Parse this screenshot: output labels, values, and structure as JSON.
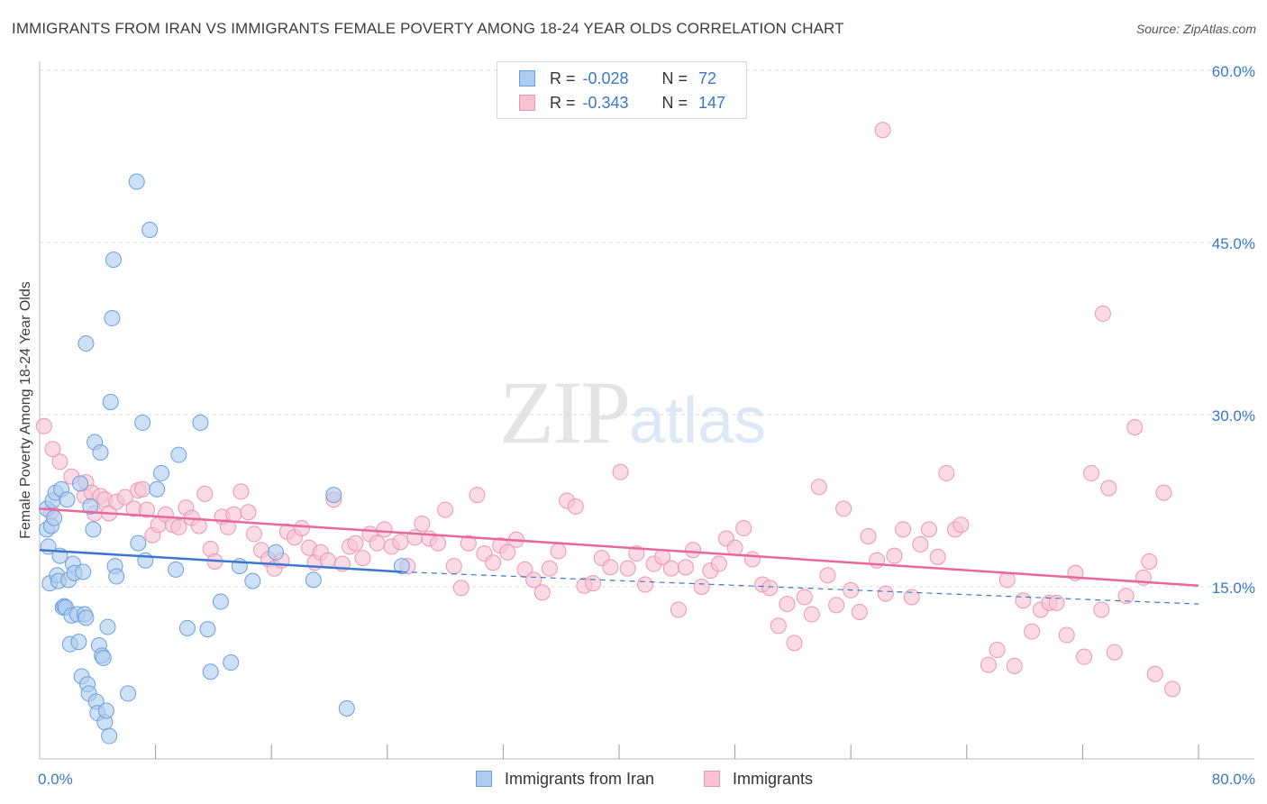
{
  "title": "IMMIGRANTS FROM IRAN VS IMMIGRANTS FEMALE POVERTY AMONG 18-24 YEAR OLDS CORRELATION CHART",
  "source": "Source: ZipAtlas.com",
  "watermark": {
    "zip": "ZIP",
    "atlas": "atlas"
  },
  "legend": {
    "r_label": "R =",
    "n_label": "N =",
    "rows": [
      {
        "r": "-0.028",
        "n": "72"
      },
      {
        "r": "-0.343",
        "n": "147"
      }
    ]
  },
  "colors": {
    "series1_fill": "#aecbf0",
    "series1_stroke": "#6a9fdc",
    "series1_line": "#3b77d0",
    "series2_fill": "#f7c3d3",
    "series2_stroke": "#ee94b3",
    "series2_line": "#e8689a",
    "axis_label": "#3a77c9",
    "grid": "#dcdcdc"
  },
  "chart_data": {
    "type": "scatter",
    "title": "IMMIGRANTS FROM IRAN VS IMMIGRANTS FEMALE POVERTY AMONG 18-24 YEAR OLDS CORRELATION CHART",
    "xlabel": "",
    "ylabel": "Female Poverty Among 18-24 Year Olds",
    "xlim": [
      0,
      80
    ],
    "ylim": [
      0,
      60
    ],
    "x_tick_labels": [
      "0.0%",
      "80.0%"
    ],
    "y_tick_values": [
      15,
      30,
      45,
      60
    ],
    "y_tick_labels": [
      "15.0%",
      "30.0%",
      "45.0%",
      "60.0%"
    ],
    "grid": "horizontal dashed",
    "legend_position": "top-center",
    "series": [
      {
        "name": "Immigrants from Iran",
        "r": -0.028,
        "n": 72,
        "trend": {
          "x0": 0,
          "y0": 18.2,
          "x1": 25,
          "y1": 16.3,
          "dashed_to_x": 80,
          "dashed_to_y": 13.5
        },
        "points": [
          [
            0.5,
            21.8
          ],
          [
            0.5,
            20.0
          ],
          [
            0.6,
            18.5
          ],
          [
            0.7,
            15.3
          ],
          [
            0.8,
            20.3
          ],
          [
            0.9,
            22.5
          ],
          [
            1.0,
            21.0
          ],
          [
            1.1,
            23.2
          ],
          [
            1.2,
            16.0
          ],
          [
            1.3,
            15.5
          ],
          [
            1.4,
            17.7
          ],
          [
            1.5,
            23.5
          ],
          [
            1.6,
            13.2
          ],
          [
            1.7,
            13.3
          ],
          [
            1.8,
            13.2
          ],
          [
            1.9,
            22.6
          ],
          [
            2.0,
            15.6
          ],
          [
            2.1,
            10.0
          ],
          [
            2.2,
            12.5
          ],
          [
            2.3,
            17.0
          ],
          [
            2.4,
            16.2
          ],
          [
            2.6,
            12.6
          ],
          [
            2.7,
            10.2
          ],
          [
            2.8,
            24.0
          ],
          [
            2.9,
            7.2
          ],
          [
            3.0,
            16.3
          ],
          [
            3.1,
            12.6
          ],
          [
            3.2,
            12.3
          ],
          [
            3.3,
            6.5
          ],
          [
            3.4,
            5.7
          ],
          [
            3.2,
            36.2
          ],
          [
            3.5,
            22.0
          ],
          [
            3.7,
            20.0
          ],
          [
            3.8,
            27.6
          ],
          [
            3.9,
            5.0
          ],
          [
            4.0,
            4.0
          ],
          [
            4.1,
            9.9
          ],
          [
            4.2,
            26.7
          ],
          [
            4.3,
            9.0
          ],
          [
            4.4,
            8.8
          ],
          [
            4.5,
            3.2
          ],
          [
            4.6,
            4.2
          ],
          [
            4.7,
            11.5
          ],
          [
            4.8,
            2.0
          ],
          [
            4.9,
            31.1
          ],
          [
            5.0,
            38.4
          ],
          [
            5.1,
            43.5
          ],
          [
            5.2,
            16.8
          ],
          [
            5.3,
            15.9
          ],
          [
            6.1,
            5.7
          ],
          [
            6.7,
            50.3
          ],
          [
            6.8,
            18.8
          ],
          [
            7.1,
            29.3
          ],
          [
            7.3,
            17.3
          ],
          [
            7.6,
            46.1
          ],
          [
            8.1,
            23.5
          ],
          [
            8.4,
            24.9
          ],
          [
            9.4,
            16.5
          ],
          [
            9.6,
            26.5
          ],
          [
            10.2,
            11.4
          ],
          [
            11.1,
            29.3
          ],
          [
            11.6,
            11.3
          ],
          [
            11.8,
            7.6
          ],
          [
            12.5,
            13.7
          ],
          [
            13.2,
            8.4
          ],
          [
            13.8,
            16.8
          ],
          [
            14.7,
            15.5
          ],
          [
            16.3,
            18.0
          ],
          [
            18.9,
            15.6
          ],
          [
            20.3,
            23.0
          ],
          [
            21.2,
            4.4
          ],
          [
            25.0,
            16.8
          ]
        ]
      },
      {
        "name": "Immigrants",
        "r": -0.343,
        "n": 147,
        "trend": {
          "x0": 0,
          "y0": 21.8,
          "x1": 80,
          "y1": 15.1
        },
        "points": [
          [
            0.3,
            29.0
          ],
          [
            0.8,
            21.5
          ],
          [
            0.9,
            27.0
          ],
          [
            1.4,
            25.9
          ],
          [
            2.2,
            24.6
          ],
          [
            3.1,
            22.9
          ],
          [
            3.2,
            24.1
          ],
          [
            3.6,
            23.2
          ],
          [
            3.8,
            21.4
          ],
          [
            4.2,
            22.9
          ],
          [
            4.5,
            22.6
          ],
          [
            4.8,
            21.4
          ],
          [
            5.3,
            22.4
          ],
          [
            5.9,
            22.8
          ],
          [
            6.5,
            21.8
          ],
          [
            6.8,
            23.4
          ],
          [
            7.1,
            23.5
          ],
          [
            7.4,
            21.7
          ],
          [
            7.8,
            19.5
          ],
          [
            8.2,
            20.4
          ],
          [
            8.7,
            21.3
          ],
          [
            9.2,
            20.4
          ],
          [
            9.6,
            20.2
          ],
          [
            10.1,
            21.9
          ],
          [
            10.5,
            21.0
          ],
          [
            11.0,
            20.3
          ],
          [
            11.4,
            23.1
          ],
          [
            11.8,
            18.3
          ],
          [
            12.1,
            17.2
          ],
          [
            12.6,
            21.1
          ],
          [
            13.0,
            20.2
          ],
          [
            13.4,
            21.3
          ],
          [
            13.9,
            23.3
          ],
          [
            14.4,
            21.5
          ],
          [
            14.8,
            19.6
          ],
          [
            15.3,
            18.2
          ],
          [
            15.8,
            17.4
          ],
          [
            16.2,
            16.6
          ],
          [
            16.7,
            17.3
          ],
          [
            17.1,
            19.8
          ],
          [
            17.6,
            19.3
          ],
          [
            18.1,
            20.1
          ],
          [
            18.6,
            18.4
          ],
          [
            19.0,
            17.1
          ],
          [
            19.4,
            18.0
          ],
          [
            19.9,
            17.3
          ],
          [
            20.3,
            22.6
          ],
          [
            20.9,
            17.0
          ],
          [
            21.4,
            18.5
          ],
          [
            21.8,
            18.8
          ],
          [
            22.3,
            17.5
          ],
          [
            22.8,
            19.6
          ],
          [
            23.3,
            18.8
          ],
          [
            23.8,
            20.0
          ],
          [
            24.3,
            18.5
          ],
          [
            24.9,
            18.9
          ],
          [
            25.4,
            16.8
          ],
          [
            25.9,
            19.3
          ],
          [
            26.4,
            20.5
          ],
          [
            26.9,
            19.2
          ],
          [
            27.5,
            18.8
          ],
          [
            28.0,
            21.7
          ],
          [
            28.6,
            16.8
          ],
          [
            29.1,
            14.9
          ],
          [
            29.6,
            18.8
          ],
          [
            30.2,
            23.0
          ],
          [
            30.7,
            17.9
          ],
          [
            31.3,
            17.1
          ],
          [
            31.8,
            18.6
          ],
          [
            32.3,
            18.0
          ],
          [
            32.9,
            19.1
          ],
          [
            33.5,
            16.5
          ],
          [
            34.1,
            15.6
          ],
          [
            34.7,
            14.5
          ],
          [
            35.2,
            16.6
          ],
          [
            35.8,
            18.1
          ],
          [
            36.4,
            22.5
          ],
          [
            37.0,
            22.0
          ],
          [
            37.6,
            15.1
          ],
          [
            38.2,
            15.3
          ],
          [
            38.8,
            17.5
          ],
          [
            39.4,
            16.7
          ],
          [
            40.1,
            25.0
          ],
          [
            40.6,
            16.6
          ],
          [
            41.2,
            17.9
          ],
          [
            41.8,
            15.2
          ],
          [
            42.4,
            17.0
          ],
          [
            43.0,
            17.6
          ],
          [
            43.6,
            16.6
          ],
          [
            44.1,
            13.0
          ],
          [
            44.6,
            16.7
          ],
          [
            45.1,
            18.2
          ],
          [
            45.7,
            15.0
          ],
          [
            46.3,
            16.4
          ],
          [
            46.9,
            17.0
          ],
          [
            47.4,
            19.2
          ],
          [
            48.0,
            18.4
          ],
          [
            48.6,
            20.1
          ],
          [
            49.2,
            17.4
          ],
          [
            49.9,
            15.2
          ],
          [
            50.4,
            14.9
          ],
          [
            51.0,
            11.6
          ],
          [
            51.6,
            13.5
          ],
          [
            52.1,
            10.1
          ],
          [
            52.8,
            14.1
          ],
          [
            53.3,
            12.6
          ],
          [
            53.8,
            23.7
          ],
          [
            54.4,
            16.0
          ],
          [
            55.0,
            13.4
          ],
          [
            55.5,
            21.8
          ],
          [
            56.0,
            14.7
          ],
          [
            56.6,
            12.8
          ],
          [
            57.2,
            19.4
          ],
          [
            57.8,
            17.3
          ],
          [
            58.4,
            14.4
          ],
          [
            59.0,
            17.7
          ],
          [
            59.6,
            20.0
          ],
          [
            60.2,
            14.1
          ],
          [
            60.8,
            18.7
          ],
          [
            61.4,
            20.0
          ],
          [
            62.0,
            17.6
          ],
          [
            62.6,
            24.9
          ],
          [
            63.2,
            20.0
          ],
          [
            63.6,
            20.4
          ],
          [
            65.5,
            8.2
          ],
          [
            66.1,
            9.5
          ],
          [
            66.8,
            15.6
          ],
          [
            67.3,
            8.1
          ],
          [
            67.9,
            13.8
          ],
          [
            68.5,
            11.1
          ],
          [
            69.1,
            13.0
          ],
          [
            69.7,
            13.6
          ],
          [
            70.2,
            13.6
          ],
          [
            70.9,
            10.8
          ],
          [
            71.5,
            16.2
          ],
          [
            72.1,
            8.9
          ],
          [
            72.6,
            24.9
          ],
          [
            73.3,
            13.0
          ],
          [
            73.8,
            23.6
          ],
          [
            74.2,
            9.3
          ],
          [
            75.0,
            14.2
          ],
          [
            75.6,
            28.9
          ],
          [
            76.2,
            15.8
          ],
          [
            76.6,
            17.2
          ],
          [
            77.0,
            7.4
          ],
          [
            77.6,
            23.2
          ],
          [
            78.2,
            6.1
          ],
          [
            58.2,
            54.8
          ],
          [
            73.4,
            38.8
          ]
        ]
      }
    ]
  }
}
